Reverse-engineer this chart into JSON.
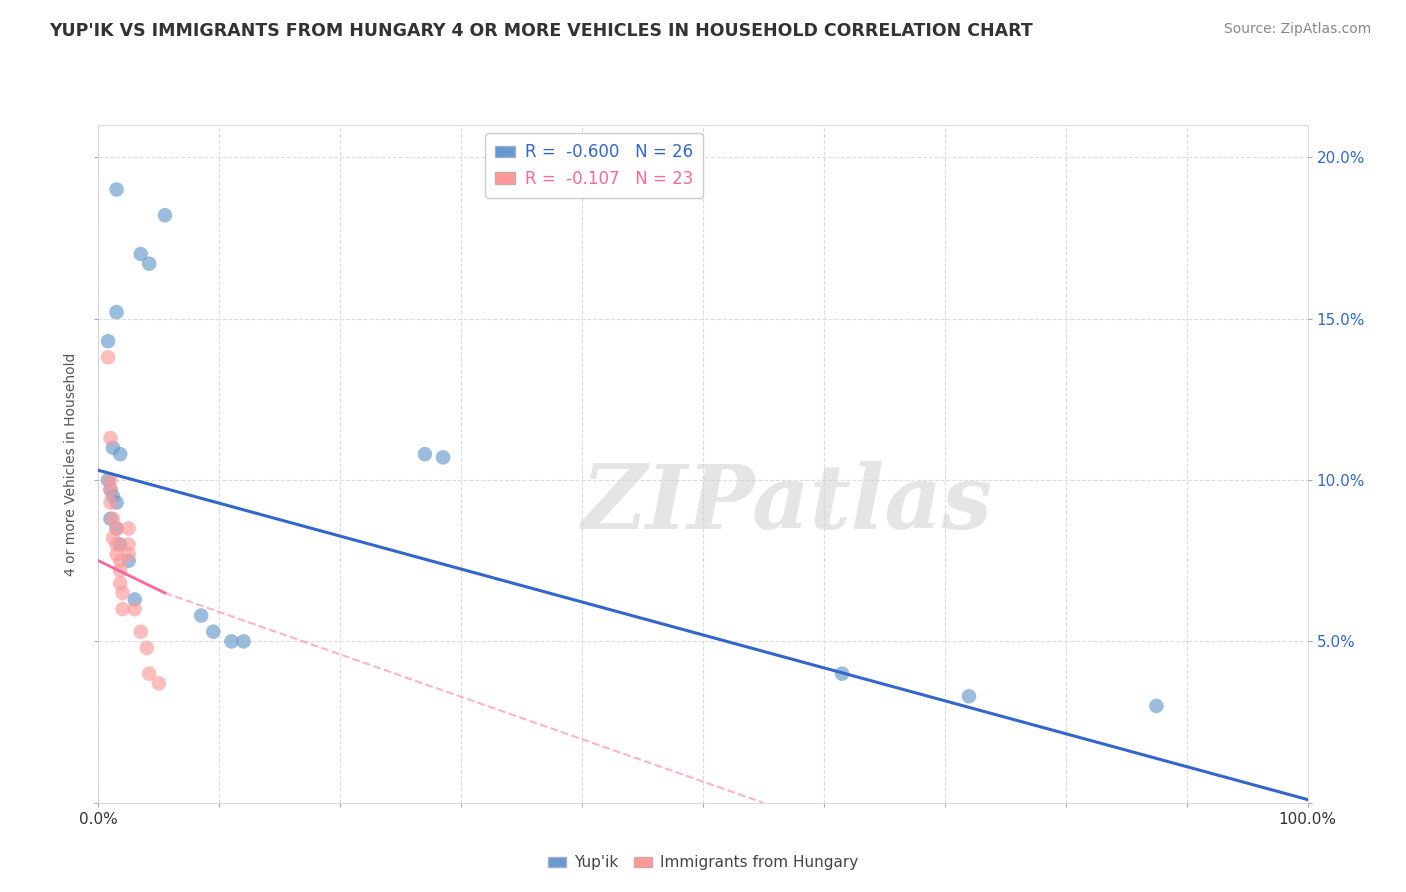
{
  "title": "YUP'IK VS IMMIGRANTS FROM HUNGARY 4 OR MORE VEHICLES IN HOUSEHOLD CORRELATION CHART",
  "source": "Source: ZipAtlas.com",
  "ylabel": "4 or more Vehicles in Household",
  "xlim": [
    0,
    1.0
  ],
  "ylim": [
    0,
    0.21
  ],
  "xticks": [
    0.0,
    0.1,
    0.2,
    0.3,
    0.4,
    0.5,
    0.6,
    0.7,
    0.8,
    0.9,
    1.0
  ],
  "xticklabels_outer": [
    "0.0%",
    "100.0%"
  ],
  "yticks": [
    0.0,
    0.05,
    0.1,
    0.15,
    0.2
  ],
  "ytick_labels_right": [
    "",
    "5.0%",
    "10.0%",
    "15.0%",
    "20.0%"
  ],
  "legend_entries": [
    {
      "label": "R =  -0.600   N = 26",
      "color": "#6699cc"
    },
    {
      "label": "R =  -0.107   N = 23",
      "color": "#ff9999"
    }
  ],
  "legend_bottom": [
    {
      "label": "Yup'ik",
      "color": "#6699cc"
    },
    {
      "label": "Immigrants from Hungary",
      "color": "#ff9999"
    }
  ],
  "blue_points": [
    [
      0.015,
      0.19
    ],
    [
      0.035,
      0.17
    ],
    [
      0.042,
      0.167
    ],
    [
      0.055,
      0.182
    ],
    [
      0.015,
      0.152
    ],
    [
      0.008,
      0.143
    ],
    [
      0.012,
      0.11
    ],
    [
      0.018,
      0.108
    ],
    [
      0.012,
      0.095
    ],
    [
      0.008,
      0.1
    ],
    [
      0.01,
      0.097
    ],
    [
      0.015,
      0.093
    ],
    [
      0.01,
      0.088
    ],
    [
      0.015,
      0.085
    ],
    [
      0.018,
      0.08
    ],
    [
      0.025,
      0.075
    ],
    [
      0.03,
      0.063
    ],
    [
      0.085,
      0.058
    ],
    [
      0.095,
      0.053
    ],
    [
      0.11,
      0.05
    ],
    [
      0.12,
      0.05
    ],
    [
      0.27,
      0.108
    ],
    [
      0.285,
      0.107
    ],
    [
      0.615,
      0.04
    ],
    [
      0.72,
      0.033
    ],
    [
      0.875,
      0.03
    ]
  ],
  "pink_points": [
    [
      0.008,
      0.138
    ],
    [
      0.01,
      0.113
    ],
    [
      0.01,
      0.1
    ],
    [
      0.01,
      0.097
    ],
    [
      0.01,
      0.093
    ],
    [
      0.012,
      0.088
    ],
    [
      0.015,
      0.085
    ],
    [
      0.012,
      0.082
    ],
    [
      0.015,
      0.08
    ],
    [
      0.015,
      0.077
    ],
    [
      0.018,
      0.075
    ],
    [
      0.018,
      0.072
    ],
    [
      0.018,
      0.068
    ],
    [
      0.02,
      0.065
    ],
    [
      0.02,
      0.06
    ],
    [
      0.025,
      0.085
    ],
    [
      0.025,
      0.08
    ],
    [
      0.025,
      0.077
    ],
    [
      0.03,
      0.06
    ],
    [
      0.035,
      0.053
    ],
    [
      0.04,
      0.048
    ],
    [
      0.042,
      0.04
    ],
    [
      0.05,
      0.037
    ]
  ],
  "blue_line": {
    "x0": 0.0,
    "y0": 0.103,
    "x1": 1.0,
    "y1": 0.001
  },
  "pink_line_solid_x0": 0.0,
  "pink_line_solid_y0": 0.075,
  "pink_line_solid_x1": 0.055,
  "pink_line_solid_y1": 0.065,
  "pink_line_dashed_x0": 0.055,
  "pink_line_dashed_y0": 0.065,
  "pink_line_dashed_x1": 0.55,
  "pink_line_dashed_y1": 0.0,
  "watermark": "ZIPatlas",
  "background_color": "#ffffff",
  "grid_color": "#dddddd",
  "blue_color": "#6699cc",
  "pink_color": "#ff9999",
  "blue_line_color": "#3366cc",
  "pink_line_color": "#ff6699"
}
